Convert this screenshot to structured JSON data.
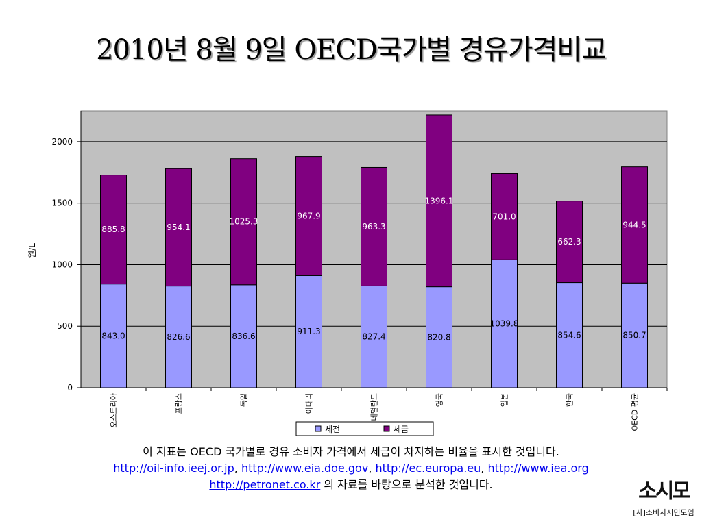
{
  "slide": {
    "title": "2010년 8월 9일 OECD국가별 경유가격비교"
  },
  "chart_data": {
    "type": "bar",
    "stacked": true,
    "categories": [
      "오스트리아",
      "프랑스",
      "독일",
      "이태리",
      "네덜란드",
      "영국",
      "일본",
      "한국",
      "OECD 평균"
    ],
    "series": [
      {
        "name": "세전",
        "color": "#9999ff",
        "values": [
          843.0,
          826.6,
          836.6,
          911.3,
          827.4,
          820.8,
          1039.8,
          854.6,
          850.7
        ]
      },
      {
        "name": "세금",
        "color": "#800080",
        "values": [
          885.8,
          954.1,
          1025.3,
          967.9,
          963.3,
          1396.1,
          701.0,
          662.3,
          944.5
        ]
      }
    ],
    "ylabel": "원/L",
    "ylim": [
      0,
      2250
    ],
    "yticks": [
      0,
      500,
      1000,
      1500,
      2000
    ],
    "grid": true,
    "legend": "bottom"
  },
  "caption": {
    "line1": "이 지표는 OECD 국가별로 경유 소비자 가격에서 세금이 차지하는 비율을 표시한 것입니다.",
    "links": [
      "http://oil-info.ieej.or.jp",
      "http://www.eia.doe.gov",
      "http://ec.europa.eu",
      "http://www.iea.org",
      "http://petronet.co.kr"
    ],
    "separator": ", ",
    "line3_suffix": " 의 자료를 바탕으로 분석한 것입니다."
  },
  "logo": {
    "mark": "소시모",
    "sub": "[사]소비자시민모임"
  }
}
